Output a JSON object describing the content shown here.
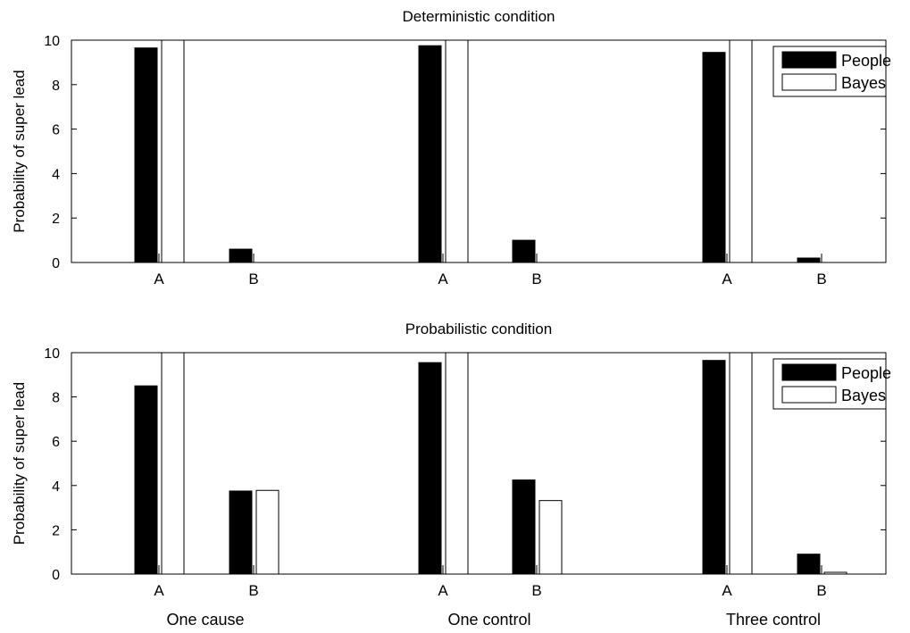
{
  "figure": {
    "group_labels": [
      "One cause",
      "One control",
      "Three control"
    ]
  },
  "chart_data": [
    {
      "type": "bar",
      "title": "Deterministic condition",
      "ylabel": "Probability of super lead",
      "xlabel": "",
      "ylim": [
        0,
        10
      ],
      "yticks": [
        0,
        2,
        4,
        6,
        8,
        10
      ],
      "grid": false,
      "legend": {
        "position": "top-right",
        "entries": [
          "People",
          "Bayes"
        ]
      },
      "groups": [
        "One cause",
        "One control",
        "Three control"
      ],
      "categories": [
        "A",
        "B",
        "A",
        "B",
        "A",
        "B"
      ],
      "series": [
        {
          "name": "People",
          "color": "#000000",
          "values": [
            9.65,
            0.6,
            9.75,
            1.0,
            9.45,
            0.2
          ]
        },
        {
          "name": "Bayes",
          "color": "#ffffff",
          "values": [
            10.0,
            0.0,
            10.0,
            0.0,
            10.0,
            0.0
          ]
        }
      ]
    },
    {
      "type": "bar",
      "title": "Probabilistic condition",
      "ylabel": "Probability of super lead",
      "xlabel": "",
      "ylim": [
        0,
        10
      ],
      "yticks": [
        0,
        2,
        4,
        6,
        8,
        10
      ],
      "grid": false,
      "legend": {
        "position": "top-right",
        "entries": [
          "People",
          "Bayes"
        ]
      },
      "groups": [
        "One cause",
        "One control",
        "Three control"
      ],
      "categories": [
        "A",
        "B",
        "A",
        "B",
        "A",
        "B"
      ],
      "series": [
        {
          "name": "People",
          "color": "#000000",
          "values": [
            8.5,
            3.75,
            9.55,
            4.25,
            9.65,
            0.9
          ]
        },
        {
          "name": "Bayes",
          "color": "#ffffff",
          "values": [
            10.0,
            3.78,
            10.0,
            3.32,
            10.0,
            0.08
          ]
        }
      ]
    }
  ]
}
